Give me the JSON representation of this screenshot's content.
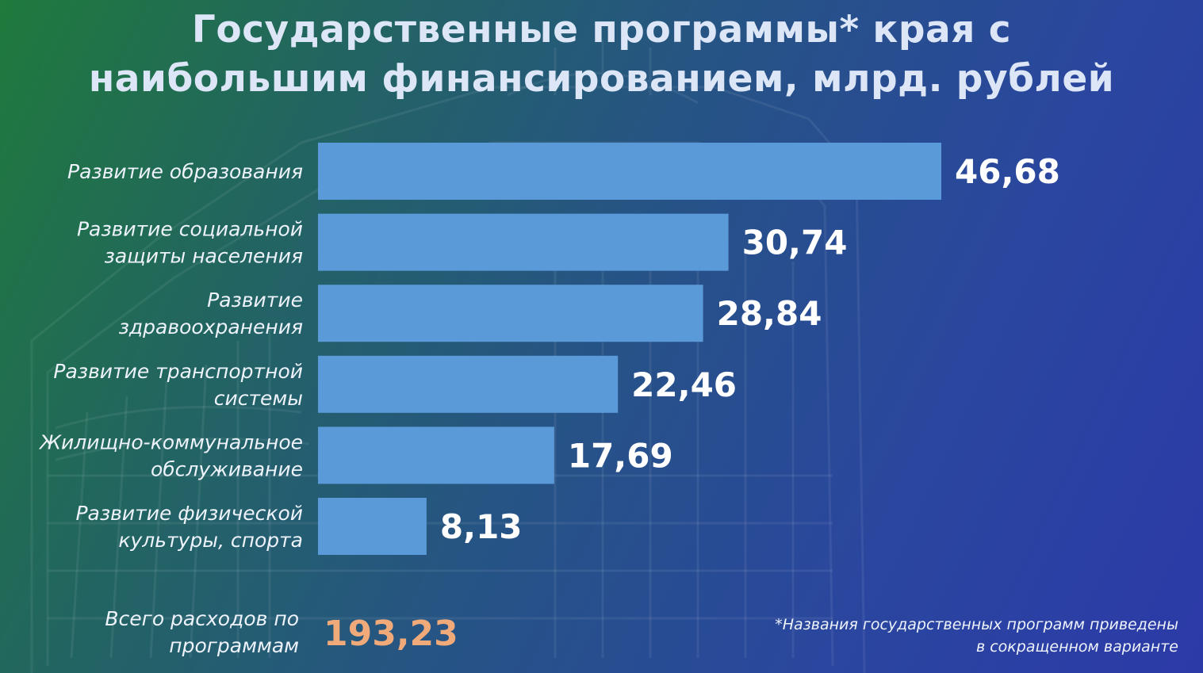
{
  "header": {
    "title_line1": "Государственные программы* края с",
    "title_line2": "наибольшим финансированием, млрд. рублей"
  },
  "chart_data": {
    "type": "bar",
    "orientation": "horizontal",
    "categories": [
      [
        "Развитие образования"
      ],
      [
        "Развитие социальной",
        "защиты населения"
      ],
      [
        "Развитие",
        "здравоохранения"
      ],
      [
        "Развитие транспортной",
        "системы"
      ],
      [
        "Жилищно-коммунальное",
        "обслуживание"
      ],
      [
        "Развитие физической",
        "культуры, спорта"
      ]
    ],
    "values": [
      46.68,
      30.74,
      28.84,
      22.46,
      17.69,
      8.13
    ],
    "value_labels": [
      "46,68",
      "30,74",
      "28,84",
      "22,46",
      "17,69",
      "8,13"
    ],
    "bar_color": "#5a9ad8",
    "grid": false,
    "legend": "none"
  },
  "total": {
    "label": "Всего расходов по\nпрограммам",
    "value": "193,23",
    "color": "#f0aa7a"
  },
  "footnote": "*Названия государственных программ приведены\nв сокращенном варианте"
}
